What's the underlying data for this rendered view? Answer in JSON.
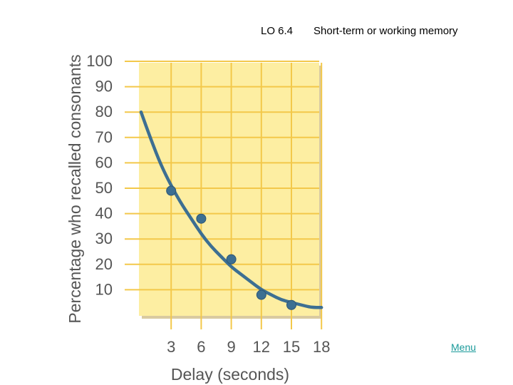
{
  "header": {
    "lo_code": "LO 6.4",
    "title": "Short-term or working memory"
  },
  "nav": {
    "menu_label": "Menu"
  },
  "chart_data": {
    "type": "scatter",
    "title": "",
    "xlabel": "Delay (seconds)",
    "ylabel": "Percentage who recalled consonants",
    "x_ticks": [
      3,
      6,
      9,
      12,
      15,
      18
    ],
    "y_ticks": [
      10,
      20,
      30,
      40,
      50,
      60,
      70,
      80,
      90,
      100
    ],
    "xlim": [
      0,
      18
    ],
    "ylim": [
      0,
      100
    ],
    "grid": true,
    "points": [
      {
        "x": 3,
        "y": 49
      },
      {
        "x": 6,
        "y": 38
      },
      {
        "x": 9,
        "y": 22
      },
      {
        "x": 12,
        "y": 8
      },
      {
        "x": 15,
        "y": 4
      }
    ],
    "trend_curve": [
      {
        "x": 0,
        "y": 80
      },
      {
        "x": 1,
        "y": 69
      },
      {
        "x": 2,
        "y": 59
      },
      {
        "x": 3,
        "y": 51
      },
      {
        "x": 4,
        "y": 44
      },
      {
        "x": 5,
        "y": 38
      },
      {
        "x": 6,
        "y": 32
      },
      {
        "x": 7,
        "y": 27
      },
      {
        "x": 8,
        "y": 23
      },
      {
        "x": 9,
        "y": 19
      },
      {
        "x": 10,
        "y": 16
      },
      {
        "x": 11,
        "y": 13
      },
      {
        "x": 12,
        "y": 10
      },
      {
        "x": 13,
        "y": 8
      },
      {
        "x": 14,
        "y": 6
      },
      {
        "x": 15,
        "y": 5
      },
      {
        "x": 16,
        "y": 4
      },
      {
        "x": 17,
        "y": 3
      },
      {
        "x": 18,
        "y": 3
      }
    ],
    "colors": {
      "plot_background": "#fdeea2",
      "plot_shadow": "#d9caa0",
      "grid": "#f3c84a",
      "curve": "#3d6f92",
      "point": "#3d6f92",
      "text": "#555555"
    }
  }
}
